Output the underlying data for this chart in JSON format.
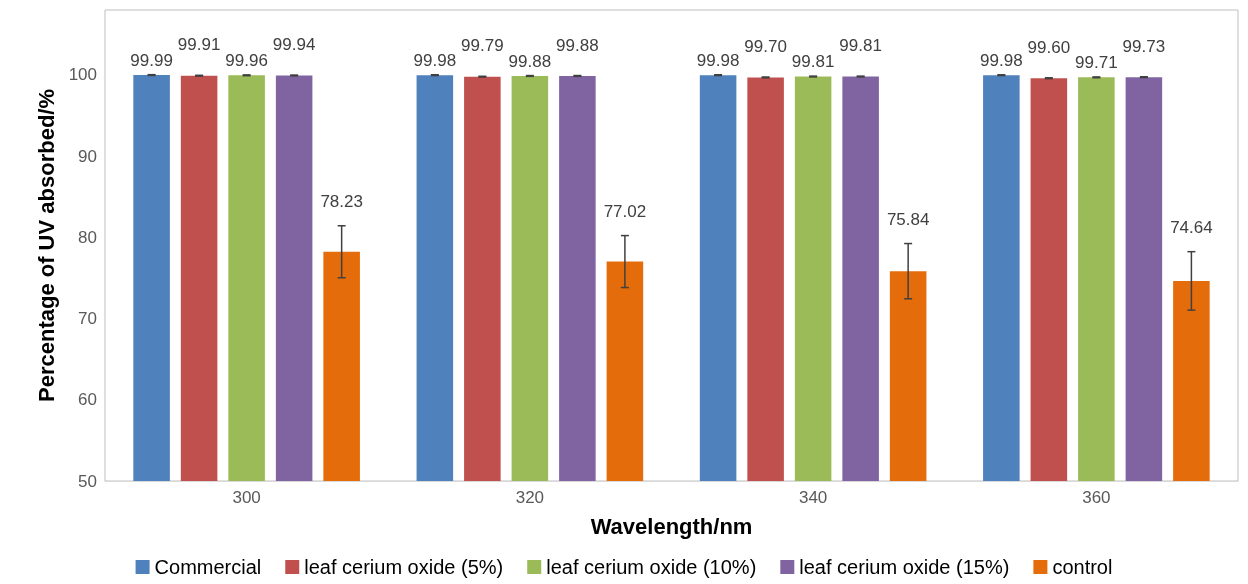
{
  "chart_data": {
    "type": "bar",
    "xlabel": "Wavelength/nm",
    "ylabel": "Percentage of UV absorbed/%",
    "categories": [
      "300",
      "320",
      "340",
      "360"
    ],
    "series": [
      {
        "name": "Commercial",
        "color": "#4f81bd",
        "values": [
          99.99,
          99.98,
          99.98,
          99.98
        ],
        "value_labels": [
          "99.99",
          "99.98",
          "99.98",
          "99.98"
        ],
        "errors": [
          0.05,
          0.05,
          0.05,
          0.05
        ]
      },
      {
        "name": "leaf cerium oxide (5%)",
        "color": "#c0504d",
        "values": [
          99.91,
          99.79,
          99.7,
          99.6
        ],
        "value_labels": [
          "99.91",
          "99.79",
          "99.70",
          "99.60"
        ],
        "errors": [
          0.05,
          0.05,
          0.05,
          0.05
        ]
      },
      {
        "name": "leaf cerium oxide (10%)",
        "color": "#9bbb59",
        "values": [
          99.96,
          99.88,
          99.81,
          99.71
        ],
        "value_labels": [
          "99.96",
          "99.88",
          "99.81",
          "99.71"
        ],
        "errors": [
          0.05,
          0.05,
          0.05,
          0.05
        ]
      },
      {
        "name": "leaf cerium oxide (15%)",
        "color": "#8064a2",
        "values": [
          99.94,
          99.88,
          99.81,
          99.73
        ],
        "value_labels": [
          "99.94",
          "99.88",
          "99.81",
          "99.73"
        ],
        "errors": [
          0.05,
          0.05,
          0.05,
          0.05
        ]
      },
      {
        "name": "control",
        "color": "#e46c0a",
        "values": [
          78.23,
          77.02,
          75.84,
          74.64
        ],
        "value_labels": [
          "78.23",
          "77.02",
          "75.84",
          "74.64"
        ],
        "errors": [
          3.2,
          3.2,
          3.4,
          3.6
        ]
      }
    ],
    "ylim": [
      50,
      108
    ],
    "yticks": [
      50,
      60,
      70,
      80,
      90,
      100
    ],
    "grid": false,
    "legend": "bottom"
  }
}
